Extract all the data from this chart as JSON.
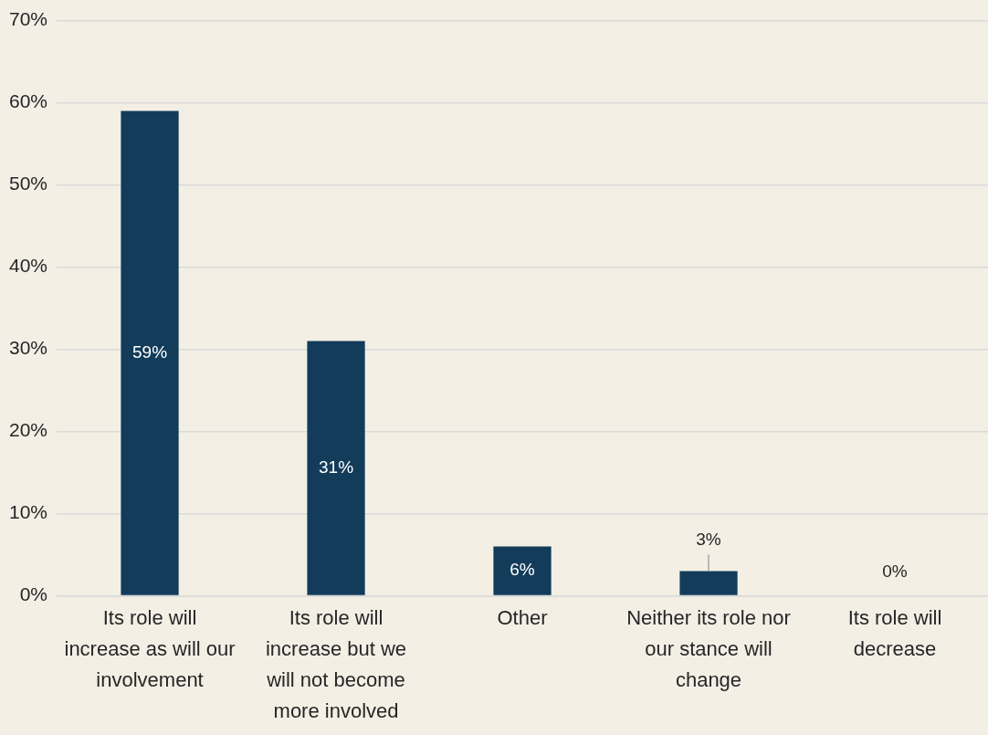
{
  "chart_data": {
    "type": "bar",
    "categories": [
      "Its role will increase as will our involvement",
      "Its role will increase but we will not become more involved",
      "Other",
      "Neither its role nor our stance will change",
      "Its role will decrease"
    ],
    "values": [
      59,
      31,
      6,
      3,
      0
    ],
    "value_labels": [
      "59%",
      "31%",
      "6%",
      "3%",
      "0%"
    ],
    "color": "#123c5a",
    "ylim": [
      0,
      70
    ],
    "yticks": [
      {
        "value": 0,
        "label": "0%"
      },
      {
        "value": 10,
        "label": "10%"
      },
      {
        "value": 20,
        "label": "20%"
      },
      {
        "value": 30,
        "label": "30%"
      },
      {
        "value": 40,
        "label": "40%"
      },
      {
        "value": 50,
        "label": "50%"
      },
      {
        "value": 60,
        "label": "60%"
      },
      {
        "value": 70,
        "label": "70%"
      }
    ],
    "grid": "y"
  }
}
